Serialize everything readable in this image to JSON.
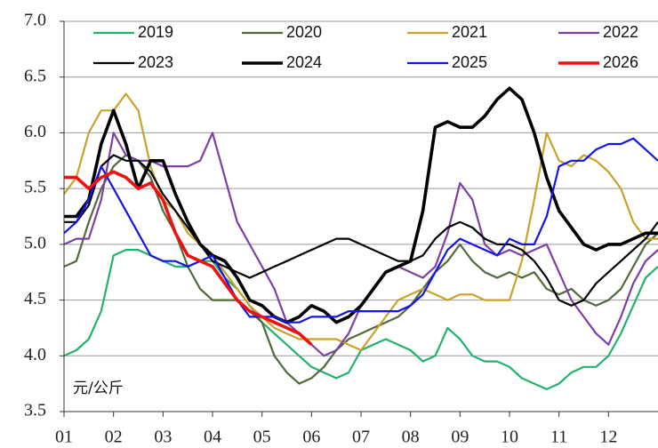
{
  "chart_data": {
    "type": "line",
    "annotation": "元/公斤",
    "x": [
      1,
      1.25,
      1.5,
      1.75,
      2,
      2.25,
      2.5,
      2.75,
      3,
      3.25,
      3.5,
      3.75,
      4,
      4.25,
      4.5,
      4.75,
      5,
      5.25,
      5.5,
      5.75,
      6,
      6.25,
      6.5,
      6.75,
      7,
      7.25,
      7.5,
      7.75,
      8,
      8.25,
      8.5,
      8.75,
      9,
      9.25,
      9.5,
      9.75,
      10,
      10.25,
      10.5,
      10.75,
      11,
      11.25,
      11.5,
      11.75,
      12,
      12.25,
      12.5,
      12.75,
      13
    ],
    "xlim": [
      1,
      13
    ],
    "xticks": [
      {
        "value": 1,
        "label": "01"
      },
      {
        "value": 2,
        "label": "02"
      },
      {
        "value": 3,
        "label": "03"
      },
      {
        "value": 4,
        "label": "04"
      },
      {
        "value": 5,
        "label": "05"
      },
      {
        "value": 6,
        "label": "06"
      },
      {
        "value": 7,
        "label": "07"
      },
      {
        "value": 8,
        "label": "08"
      },
      {
        "value": 9,
        "label": "09"
      },
      {
        "value": 10,
        "label": "10"
      },
      {
        "value": 11,
        "label": "11"
      },
      {
        "value": 12,
        "label": "12"
      }
    ],
    "ylim": [
      3.5,
      7
    ],
    "yticks": [
      {
        "value": 3.5,
        "label": "3.5"
      },
      {
        "value": 4,
        "label": "4.0"
      },
      {
        "value": 4.5,
        "label": "4.5"
      },
      {
        "value": 5,
        "label": "5.0"
      },
      {
        "value": 5.5,
        "label": "5.5"
      },
      {
        "value": 6,
        "label": "6.0"
      },
      {
        "value": 6.5,
        "label": "6.5"
      },
      {
        "value": 7,
        "label": "7.0"
      }
    ],
    "grid": true,
    "legend": "top",
    "series": [
      {
        "name": "2019",
        "color": "#22b26e",
        "linewidth": 2.2,
        "values": [
          4.0,
          4.05,
          4.15,
          4.4,
          4.9,
          4.95,
          4.95,
          4.9,
          4.85,
          4.8,
          4.8,
          4.85,
          4.85,
          4.7,
          4.6,
          4.45,
          4.3,
          4.2,
          4.1,
          4.0,
          3.9,
          3.85,
          3.8,
          3.85,
          4.05,
          4.1,
          4.15,
          4.1,
          4.05,
          3.95,
          4.0,
          4.25,
          4.15,
          4.0,
          3.95,
          3.95,
          3.9,
          3.8,
          3.75,
          3.7,
          3.75,
          3.85,
          3.9,
          3.9,
          4.0,
          4.2,
          4.45,
          4.7,
          4.8
        ]
      },
      {
        "name": "2020",
        "color": "#52693a",
        "linewidth": 2.2,
        "values": [
          4.8,
          4.85,
          5.2,
          5.5,
          5.7,
          5.8,
          5.75,
          5.6,
          5.3,
          5.1,
          4.8,
          4.6,
          4.5,
          4.5,
          4.5,
          4.4,
          4.3,
          4.0,
          3.85,
          3.75,
          3.8,
          3.9,
          4.05,
          4.15,
          4.2,
          4.25,
          4.3,
          4.35,
          4.45,
          4.6,
          4.75,
          4.85,
          5.0,
          4.85,
          4.75,
          4.7,
          4.75,
          4.7,
          4.75,
          4.6,
          4.55,
          4.6,
          4.5,
          4.45,
          4.5,
          4.6,
          4.8,
          5.0,
          5.1
        ]
      },
      {
        "name": "2021",
        "color": "#c9a22a",
        "linewidth": 2.2,
        "values": [
          5.45,
          5.6,
          6.0,
          6.2,
          6.2,
          6.35,
          6.2,
          5.7,
          5.4,
          5.3,
          5.1,
          5.0,
          4.9,
          4.75,
          4.6,
          4.45,
          4.35,
          4.25,
          4.2,
          4.15,
          4.15,
          4.15,
          4.15,
          4.1,
          4.05,
          4.2,
          4.35,
          4.5,
          4.55,
          4.6,
          4.55,
          4.5,
          4.55,
          4.55,
          4.5,
          4.5,
          4.5,
          4.85,
          5.4,
          6.0,
          5.75,
          5.7,
          5.8,
          5.75,
          5.65,
          5.5,
          5.2,
          5.05,
          5.05
        ]
      },
      {
        "name": "2022",
        "color": "#7d3fa6",
        "linewidth": 2.2,
        "values": [
          5.0,
          5.05,
          5.05,
          5.4,
          6.0,
          5.8,
          5.75,
          5.75,
          5.7,
          5.7,
          5.7,
          5.75,
          6.0,
          5.6,
          5.2,
          5.0,
          4.8,
          4.6,
          4.3,
          4.2,
          4.1,
          4.0,
          4.05,
          4.2,
          4.45,
          4.6,
          4.75,
          4.8,
          4.75,
          4.7,
          4.8,
          5.1,
          5.55,
          5.4,
          5.0,
          4.9,
          4.95,
          4.9,
          4.95,
          5.0,
          4.75,
          4.5,
          4.35,
          4.2,
          4.1,
          4.35,
          4.65,
          4.85,
          4.95
        ]
      },
      {
        "name": "2023",
        "color": "#000000",
        "linewidth": 2.2,
        "values": [
          5.2,
          5.2,
          5.35,
          5.7,
          5.8,
          5.75,
          5.75,
          5.65,
          5.45,
          5.3,
          5.15,
          5.0,
          4.85,
          4.8,
          4.75,
          4.7,
          4.75,
          4.8,
          4.85,
          4.9,
          4.95,
          5.0,
          5.05,
          5.05,
          5.0,
          4.95,
          4.9,
          4.85,
          4.85,
          4.9,
          5.05,
          5.15,
          5.2,
          5.15,
          5.05,
          5.0,
          5.0,
          4.95,
          4.85,
          4.7,
          4.5,
          4.45,
          4.5,
          4.65,
          4.75,
          4.85,
          4.95,
          5.05,
          5.2
        ]
      },
      {
        "name": "2024",
        "color": "#000000",
        "linewidth": 3.6,
        "values": [
          5.25,
          5.25,
          5.4,
          5.9,
          6.2,
          5.9,
          5.5,
          5.75,
          5.75,
          5.45,
          5.2,
          5.0,
          4.9,
          4.85,
          4.7,
          4.5,
          4.45,
          4.35,
          4.3,
          4.35,
          4.45,
          4.4,
          4.3,
          4.35,
          4.45,
          4.6,
          4.75,
          4.8,
          4.85,
          5.3,
          6.05,
          6.1,
          6.05,
          6.05,
          6.15,
          6.3,
          6.4,
          6.3,
          6.0,
          5.6,
          5.3,
          5.15,
          5.0,
          4.95,
          5.0,
          5.0,
          5.05,
          5.1,
          5.1
        ]
      },
      {
        "name": "2025",
        "color": "#1414e6",
        "linewidth": 2.2,
        "values": [
          5.1,
          5.2,
          5.4,
          5.7,
          5.5,
          5.3,
          5.1,
          4.9,
          4.85,
          4.85,
          4.8,
          4.85,
          4.9,
          4.7,
          4.5,
          4.35,
          4.35,
          4.35,
          4.3,
          4.3,
          4.35,
          4.35,
          4.35,
          4.4,
          4.4,
          4.4,
          4.4,
          4.4,
          4.45,
          4.55,
          4.75,
          4.95,
          5.05,
          5.0,
          4.95,
          4.9,
          5.05,
          5.0,
          5.0,
          5.25,
          5.7,
          5.75,
          5.75,
          5.85,
          5.9,
          5.9,
          5.95,
          5.85,
          5.75
        ]
      },
      {
        "name": "2026",
        "color": "#ee1111",
        "linewidth": 3.6,
        "values": [
          5.6,
          5.6,
          5.5,
          5.6,
          5.65,
          5.6,
          5.5,
          5.55,
          5.4,
          5.1,
          4.9,
          4.85,
          4.8,
          4.65,
          4.5,
          4.4,
          4.35,
          4.3,
          4.25,
          4.2,
          4.1,
          null,
          null,
          null,
          null,
          null,
          null,
          null,
          null,
          null,
          null,
          null,
          null,
          null,
          null,
          null,
          null,
          null,
          null,
          null,
          null,
          null,
          null,
          null,
          null,
          null,
          null,
          null,
          null
        ]
      }
    ]
  }
}
